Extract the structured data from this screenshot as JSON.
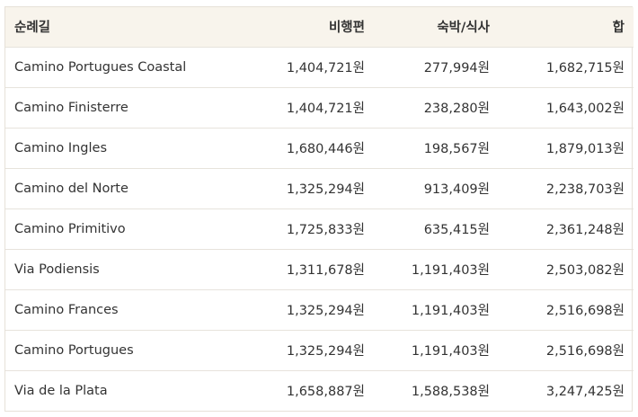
{
  "table": {
    "headers": {
      "route": "순례길",
      "airfare": "비행편",
      "lodging_meals": "숙박/식사",
      "total": "합"
    },
    "rows": [
      {
        "route": "Camino Portugues Coastal",
        "airfare": "1,404,721원",
        "lodging_meals": "277,994원",
        "total": "1,682,715원"
      },
      {
        "route": "Camino Finisterre",
        "airfare": "1,404,721원",
        "lodging_meals": "238,280원",
        "total": "1,643,002원"
      },
      {
        "route": "Camino Ingles",
        "airfare": "1,680,446원",
        "lodging_meals": "198,567원",
        "total": "1,879,013원"
      },
      {
        "route": "Camino del Norte",
        "airfare": "1,325,294원",
        "lodging_meals": "913,409원",
        "total": "2,238,703원"
      },
      {
        "route": "Camino Primitivo",
        "airfare": "1,725,833원",
        "lodging_meals": "635,415원",
        "total": "2,361,248원"
      },
      {
        "route": "Via Podiensis",
        "airfare": "1,311,678원",
        "lodging_meals": "1,191,403원",
        "total": "2,503,082원"
      },
      {
        "route": "Camino Frances",
        "airfare": "1,325,294원",
        "lodging_meals": "1,191,403원",
        "total": "2,516,698원"
      },
      {
        "route": "Camino Portugues",
        "airfare": "1,325,294원",
        "lodging_meals": "1,191,403원",
        "total": "2,516,698원"
      },
      {
        "route": "Via de la Plata",
        "airfare": "1,658,887원",
        "lodging_meals": "1,588,538원",
        "total": "3,247,425원"
      }
    ]
  },
  "colors": {
    "header_background": "#f8f4ec",
    "border": "#e6e1d8",
    "text": "#333333"
  }
}
